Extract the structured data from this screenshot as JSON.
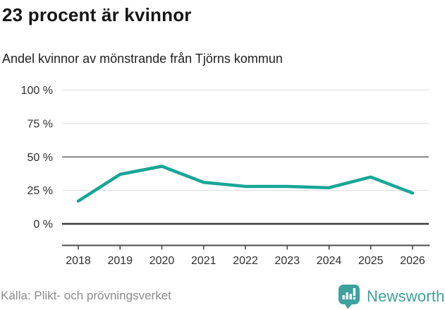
{
  "header": {
    "title": "23 procent är kvinnor",
    "subtitle": "Andel kvinnor av mönstrande från Tjörns kommun"
  },
  "chart_data": {
    "type": "line",
    "title": "23 procent är kvinnor",
    "subtitle": "Andel kvinnor av mönstrande från Tjörns kommun",
    "x": [
      "2018",
      "2019",
      "2020",
      "2021",
      "2022",
      "2023",
      "2024",
      "2025",
      "2026"
    ],
    "values": [
      17,
      37,
      43,
      31,
      28,
      28,
      27,
      35,
      23
    ],
    "unit": "%",
    "ylim": [
      0,
      100
    ],
    "yticks": [
      0,
      25,
      50,
      75,
      100
    ],
    "ytick_labels": [
      "0 %",
      "25 %",
      "50 %",
      "75 %",
      "100 %"
    ],
    "grid": "horizontal",
    "legend": "none",
    "series_name": "Andel kvinnor"
  },
  "footer": {
    "source": "Källa: Plikt- och prövningsverket",
    "logo_text": "Newsworthy"
  },
  "colors": {
    "line": "#17a697",
    "grid_light": "#e2e2e2",
    "grid_mid": "#787878",
    "baseline": "#3b3b3b",
    "axis": "#4c4c4c",
    "axis_label": "#2e2e2e",
    "logo": "#3da19d",
    "title": "#161616",
    "source_text": "#8b8b8b"
  }
}
